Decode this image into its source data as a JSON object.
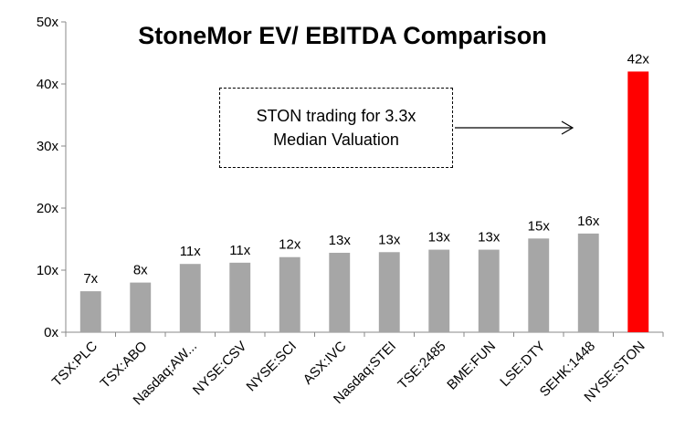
{
  "chart_data": {
    "type": "bar",
    "title": "StoneMor EV/ EBITDA Comparison",
    "categories": [
      "TSX:PLC",
      "TSX:ABO",
      "Nasdaq:AW...",
      "NYSE:CSV",
      "NYSE:SCI",
      "ASX:IVC",
      "Nasdaq:STEI",
      "TSE:2485",
      "BME:FUN",
      "LSE:DTY",
      "SEHK:1448",
      "NYSE:STON"
    ],
    "values": [
      6.6,
      8.0,
      11.0,
      11.2,
      12.1,
      12.8,
      12.9,
      13.3,
      13.3,
      15.1,
      15.9,
      42.0
    ],
    "data_labels": [
      "7x",
      "8x",
      "11x",
      "11x",
      "12x",
      "13x",
      "13x",
      "13x",
      "13x",
      "15x",
      "16x",
      "42x"
    ],
    "y_ticks": [
      0,
      10,
      20,
      30,
      40,
      50
    ],
    "y_tick_labels": [
      "0x",
      "10x",
      "20x",
      "30x",
      "40x",
      "50x"
    ],
    "ylim": [
      0,
      50
    ],
    "xlabel": "",
    "ylabel": "",
    "grid": false,
    "legend": "none",
    "colors": {
      "default": "#a6a6a6",
      "highlight": "#ff0000"
    },
    "highlight_index": 11
  },
  "annotation": {
    "line1": "STON trading for 3.3x",
    "line2": "Median Valuation"
  }
}
